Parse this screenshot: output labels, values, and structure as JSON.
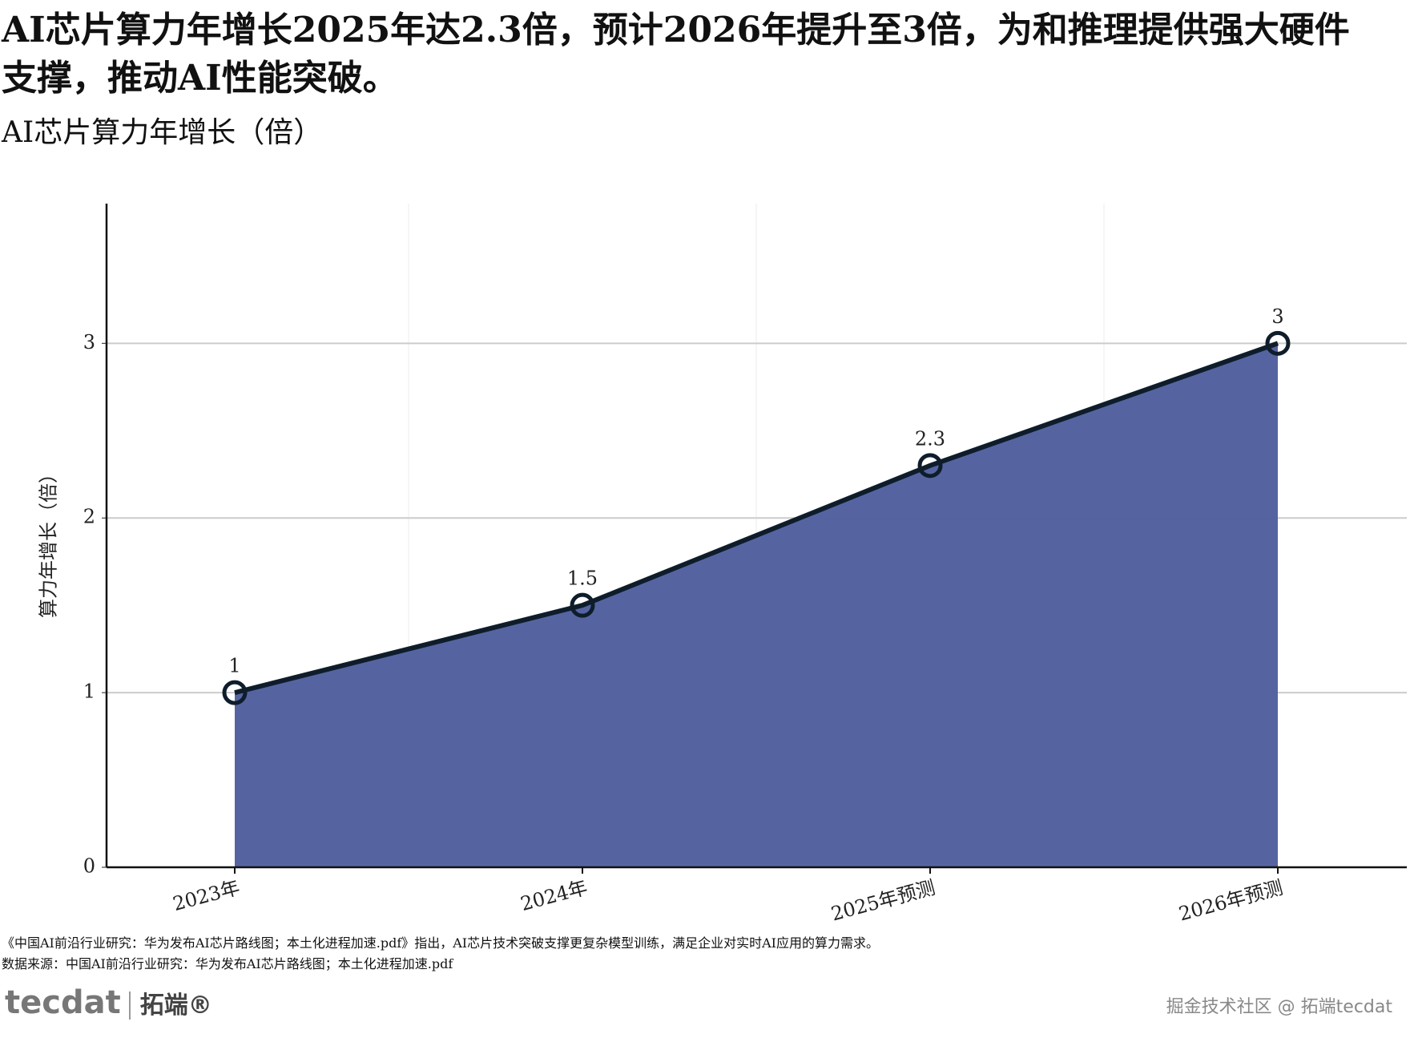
{
  "chart_data": {
    "type": "area",
    "headline": "AI芯片算力年增长2025年达2.3倍，预计2026年提升至3倍，为和推理提供强大硬件支撑，推动AI性能突破。",
    "title": "AI芯片算力年增长（倍）",
    "y_label": "算力年增长（倍）",
    "categories": [
      "2023年",
      "2024年",
      "2025年预测",
      "2026年预测"
    ],
    "values": [
      1,
      1.5,
      2.3,
      3
    ],
    "fill_color": "#4f5f9e",
    "line_color": "#0f1d2b",
    "ylim": [
      0,
      3.8
    ],
    "yticks": [
      0,
      1,
      2,
      3
    ],
    "grid": true
  },
  "footnote": "《中国AI前沿行业研究：华为发布AI芯片路线图；本土化进程加速.pdf》指出，AI芯片技术突破支撑更复杂模型训练，满足企业对实时AI应用的算力需求。",
  "source": "数据来源：中国AI前沿行业研究：华为发布AI芯片路线图；本土化进程加速.pdf",
  "logo": {
    "brand": "tecdat",
    "name": "拓端®"
  },
  "watermark": "掘金技术社区 @ 拓端tecdat"
}
